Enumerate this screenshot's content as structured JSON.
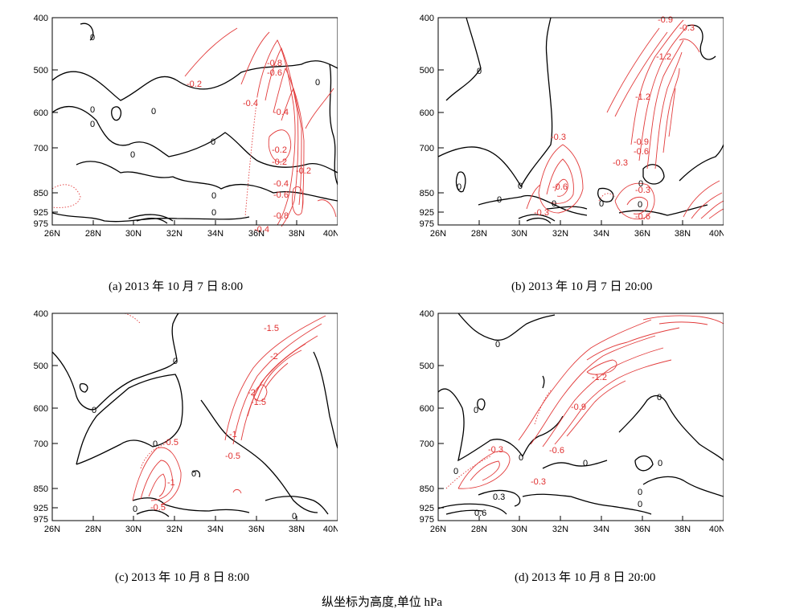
{
  "panels": [
    {
      "id": "a",
      "caption": "(a) 2013 年 10 月 7 日 8:00",
      "contour_labels": [
        "0",
        "0",
        "0",
        "0",
        "0",
        "0",
        "0",
        "0",
        "0",
        "-0.2",
        "-0.8",
        "-0.6",
        "-0.4",
        "-0.4",
        "-0.2",
        "-0.2",
        "-0.2",
        "-0.4",
        "-0.6",
        "-0.8",
        "-0.4"
      ]
    },
    {
      "id": "b",
      "caption": "(b) 2013 年 10 月 7 日 20:00",
      "contour_labels": [
        "0",
        "0",
        "0",
        "0",
        "0",
        "0",
        "0",
        "0",
        "-0.9",
        "-0.3",
        "-1.2",
        "-1.2",
        "-0.3",
        "-0.9",
        "-0.6",
        "-0.3",
        "-0.6",
        "-0.3",
        "-0.3",
        "-0.6"
      ]
    },
    {
      "id": "c",
      "caption": "(c) 2013 年 10 月 8 日 8:00",
      "contour_labels": [
        "0",
        "0",
        "0",
        "0",
        "0",
        "0",
        "-1.5",
        "-2",
        "-2",
        "-1.5",
        "-1",
        "-0.5",
        "-0.5",
        "-1",
        "-0.5"
      ]
    },
    {
      "id": "d",
      "caption": "(d) 2013 年 10 月 8 日 20:00",
      "contour_labels": [
        "0",
        "0",
        "0",
        "0",
        "0",
        "0",
        "0",
        "0",
        "0",
        "-1.2",
        "-0.9",
        "-0.6",
        "-0.3",
        "-0.3",
        "0.3",
        "0.6"
      ]
    }
  ],
  "axes": {
    "x_ticks": [
      "26N",
      "28N",
      "30N",
      "32N",
      "34N",
      "36N",
      "38N",
      "40N"
    ],
    "y_ticks": [
      "400",
      "500",
      "600",
      "700",
      "850",
      "925",
      "975"
    ]
  },
  "footnote": "纵坐标为高度,单位 hPa",
  "colors": {
    "negative_contour": "#e23b3b",
    "zero_contour": "#000000"
  }
}
